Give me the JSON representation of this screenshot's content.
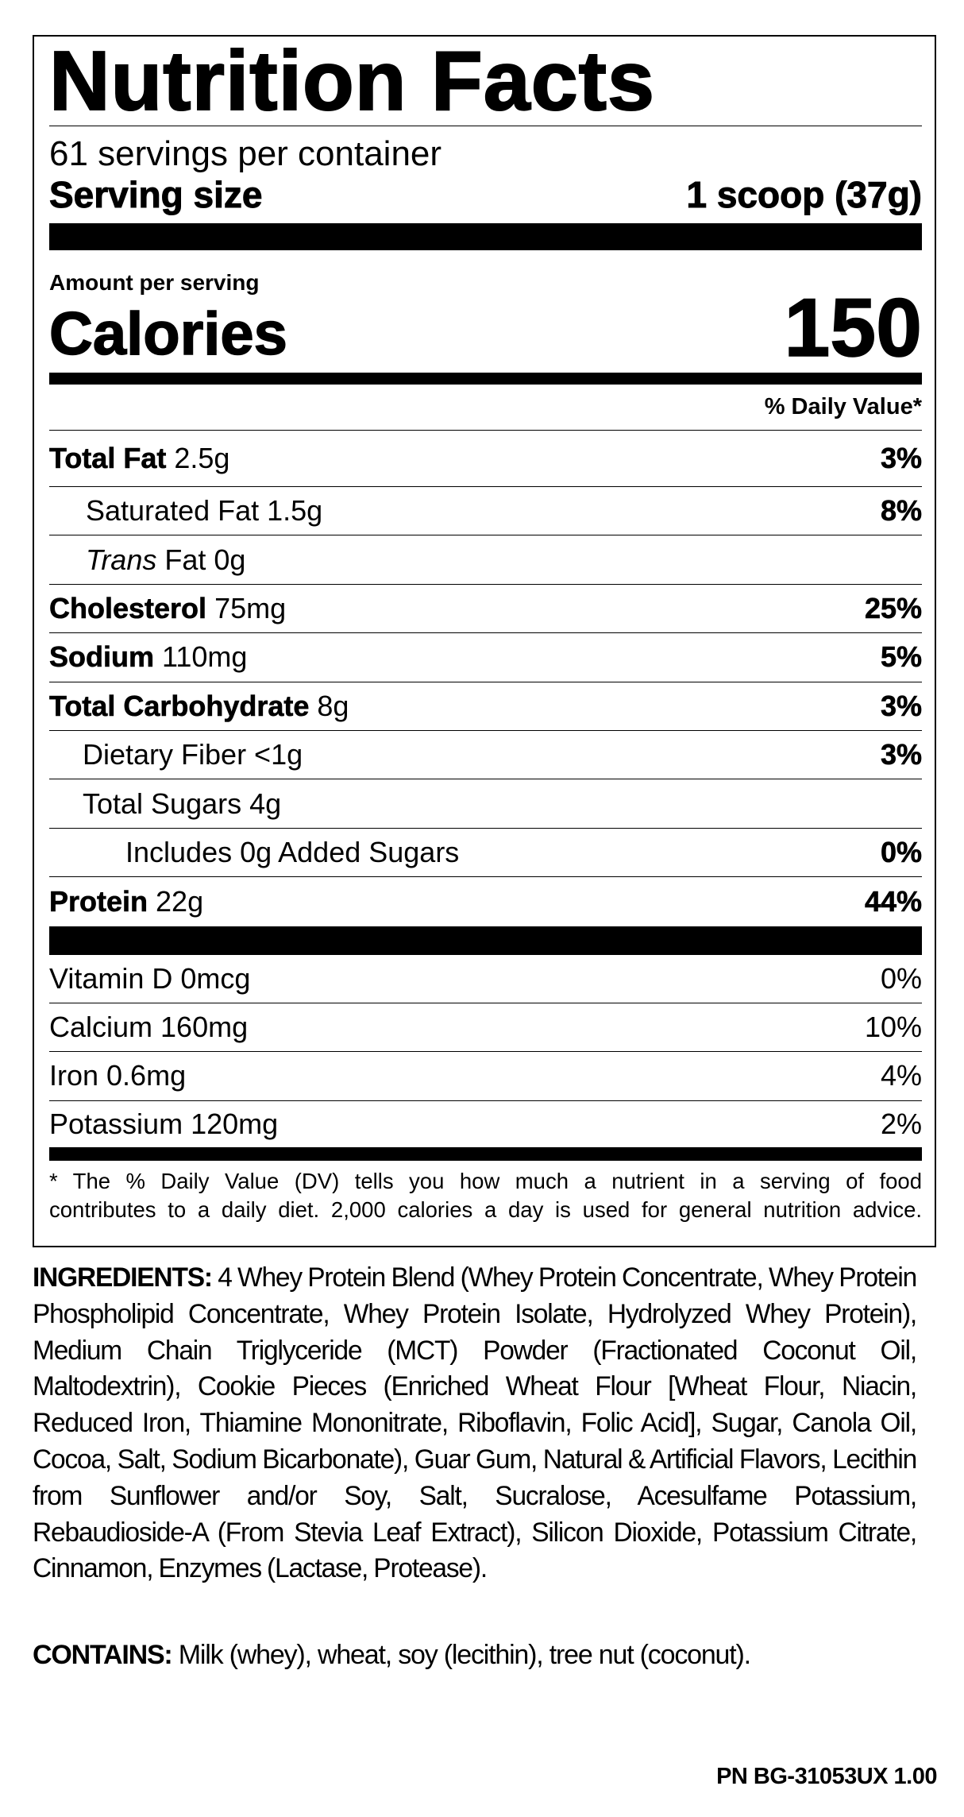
{
  "title": "Nutrition Facts",
  "servings_per_container": "61 servings per container",
  "serving_size": {
    "label": "Serving size",
    "value": "1 scoop (37g)"
  },
  "amount_per_serving": "Amount per serving",
  "calories": {
    "label": "Calories",
    "value": "150"
  },
  "daily_value_header": "% Daily Value*",
  "nutrients": [
    {
      "label": "Total Fat",
      "amount": "2.5g",
      "dv": "3%"
    },
    {
      "label": "Saturated Fat 1.5g",
      "dv": "8%"
    },
    {
      "label_italic": "Trans",
      "label": "Fat 0g",
      "dv": ""
    },
    {
      "label": "Cholesterol",
      "amount": "75mg",
      "dv": "25%"
    },
    {
      "label": "Sodium",
      "amount": "110mg",
      "dv": "5%"
    },
    {
      "label": "Total Carbohydrate",
      "amount": "8g",
      "dv": "3%"
    },
    {
      "label": "Dietary Fiber <1g",
      "dv": "3%"
    },
    {
      "label": "Total Sugars 4g",
      "dv": ""
    },
    {
      "label": "Includes 0g Added Sugars",
      "dv": "0%"
    },
    {
      "label": "Protein",
      "amount": "22g",
      "dv": "44%"
    }
  ],
  "vitamins": [
    {
      "label": "Vitamin D 0mcg",
      "dv": "0%"
    },
    {
      "label": "Calcium 160mg",
      "dv": "10%"
    },
    {
      "label": "Iron 0.6mg",
      "dv": "4%"
    },
    {
      "label": "Potassium 120mg",
      "dv": "2%"
    }
  ],
  "footnote": [
    "* The % Daily Value (DV) tells you how much a nutrient in a serving of food",
    "contributes to a daily diet. 2,000 calories a day is used for general nutrition advice."
  ],
  "ingredients": {
    "label": "INGREDIENTS:",
    "text": " 4 Whey Protein Blend (Whey Protein Concentrate, Whey Protein Phospholipid Concentrate, Whey Protein Isolate, Hydrolyzed Whey Protein), Medium Chain Triglyceride (MCT) Powder (Fractionated Coconut Oil, Maltodextrin), Cookie Pieces (Enriched Wheat Flour [Wheat Flour, Niacin, Reduced Iron, Thiamine Mononitrate, Riboflavin, Folic Acid], Sugar, Canola Oil, Cocoa, Salt, Sodium Bicarbonate), Guar Gum, Natural & Artificial Flavors, Lecithin from Sunflower and/or Soy, Salt, Sucralose, Acesulfame Potassium, Rebaudioside-A (From Stevia Leaf Extract), Silicon Dioxide, Potassium Citrate, Cinnamon, Enzymes (Lactase, Protease)."
  },
  "contains": {
    "label": "CONTAINS:",
    "text": " Milk (whey), wheat, soy (lecithin), tree nut (coconut)."
  },
  "part_number": "PN BG-31053UX 1.00"
}
